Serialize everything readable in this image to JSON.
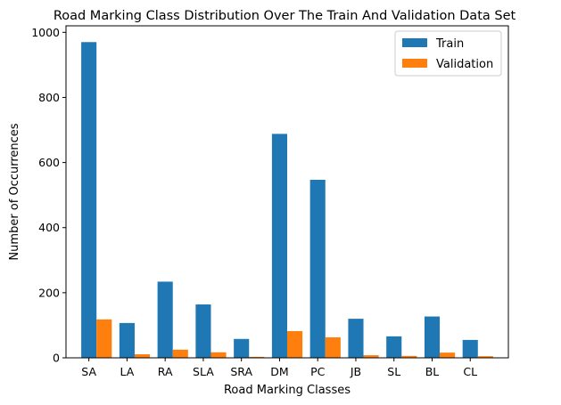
{
  "chart_data": {
    "type": "bar",
    "title": "Road Marking Class Distribution Over The Train And Validation Data Set",
    "xlabel": "Road Marking Classes",
    "ylabel": "Number of Occurrences",
    "categories": [
      "SA",
      "LA",
      "RA",
      "SLA",
      "SRA",
      "DM",
      "PC",
      "JB",
      "SL",
      "BL",
      "CL"
    ],
    "series": [
      {
        "name": "Train",
        "color": "#1f77b4",
        "values": [
          970,
          107,
          234,
          164,
          58,
          688,
          547,
          120,
          66,
          127,
          55
        ]
      },
      {
        "name": "Validation",
        "color": "#ff7f0e",
        "values": [
          118,
          11,
          25,
          17,
          3,
          82,
          63,
          8,
          6,
          16,
          5
        ]
      }
    ],
    "ylim": [
      0,
      1020
    ],
    "yticks": [
      0,
      200,
      400,
      600,
      800,
      1000
    ],
    "grid": false,
    "legend_position": "top-right"
  }
}
